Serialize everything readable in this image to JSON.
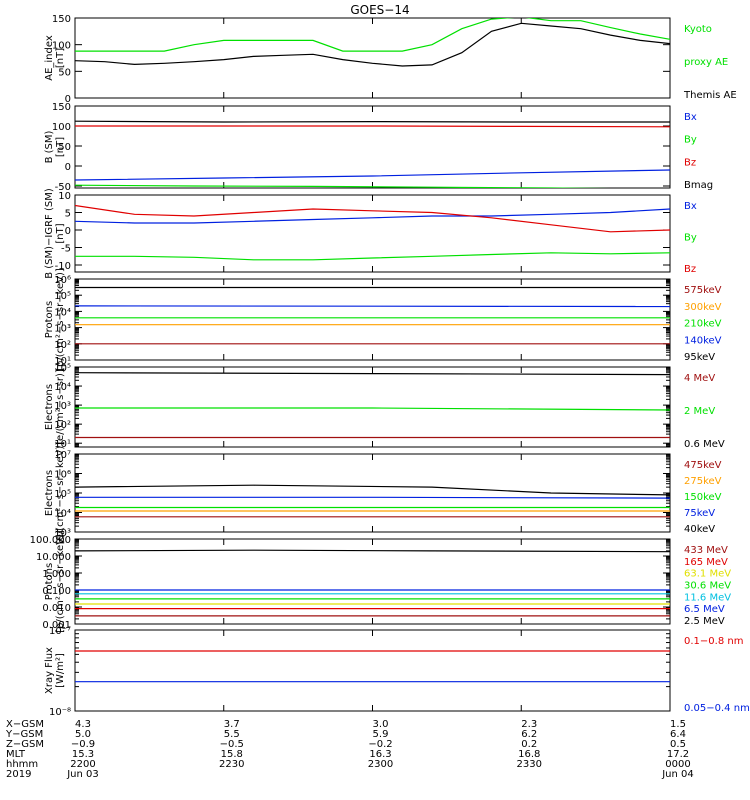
{
  "title": "GOES−14",
  "colors": {
    "black": "#000000",
    "green": "#00e000",
    "red": "#e00000",
    "darkred": "#a01010",
    "blue": "#0020e0",
    "orange": "#ffa000",
    "yellow": "#e0e000",
    "cyan": "#00c0e0",
    "purple": "#b000b0"
  },
  "chart_data": [
    {
      "type": "line",
      "panel": "ae_index",
      "ylabel": [
        "AE_index",
        "[nT]"
      ],
      "ylim": [
        0,
        150
      ],
      "yscale": "linear",
      "yticks": [
        "0",
        "50",
        "100",
        "150"
      ],
      "series": [
        {
          "name": "Kyoto proxy AE",
          "legend": [
            "Kyoto",
            "proxy AE"
          ],
          "color": "green",
          "x": [
            0,
            0.05,
            0.1,
            0.15,
            0.2,
            0.25,
            0.3,
            0.35,
            0.4,
            0.45,
            0.5,
            0.55,
            0.6,
            0.65,
            0.7,
            0.75,
            0.8,
            0.85,
            0.9,
            0.95,
            1.0
          ],
          "values": [
            88,
            88,
            88,
            88,
            100,
            108,
            108,
            108,
            108,
            88,
            88,
            88,
            100,
            130,
            148,
            152,
            145,
            145,
            132,
            120,
            110
          ]
        },
        {
          "name": "Themis AE",
          "legend": [
            "Themis AE"
          ],
          "color": "black",
          "x": [
            0,
            0.05,
            0.1,
            0.15,
            0.2,
            0.25,
            0.3,
            0.35,
            0.4,
            0.45,
            0.5,
            0.55,
            0.6,
            0.65,
            0.7,
            0.75,
            0.8,
            0.85,
            0.9,
            0.95,
            1.0
          ],
          "values": [
            70,
            68,
            63,
            65,
            68,
            72,
            78,
            80,
            82,
            72,
            65,
            60,
            62,
            85,
            125,
            140,
            135,
            130,
            118,
            108,
            102
          ]
        }
      ]
    },
    {
      "type": "line",
      "panel": "b_sm",
      "ylabel": [
        "B (SM)",
        "[nT]"
      ],
      "ylim": [
        -55,
        150
      ],
      "yscale": "linear",
      "yticks": [
        "-50",
        "0",
        "50",
        "100",
        "150"
      ],
      "series": [
        {
          "name": "Bx",
          "legend": [
            "Bx"
          ],
          "color": "blue",
          "x": [
            0,
            0.25,
            0.5,
            0.75,
            1.0
          ],
          "values": [
            -35,
            -30,
            -25,
            -17,
            -10
          ]
        },
        {
          "name": "By",
          "legend": [
            "By"
          ],
          "color": "green",
          "x": [
            0,
            0.2,
            0.4,
            0.6,
            0.8,
            1.0
          ],
          "values": [
            -48,
            -50,
            -51,
            -53,
            -55,
            -58
          ]
        },
        {
          "name": "Bz",
          "legend": [
            "Bz"
          ],
          "color": "red",
          "x": [
            0,
            0.25,
            0.5,
            0.75,
            1.0
          ],
          "values": [
            100,
            100,
            100,
            99,
            98
          ]
        },
        {
          "name": "Bmag",
          "legend": [
            "Bmag"
          ],
          "color": "black",
          "x": [
            0,
            0.25,
            0.5,
            0.75,
            1.0
          ],
          "values": [
            112,
            110,
            111,
            110,
            110
          ]
        }
      ]
    },
    {
      "type": "line",
      "panel": "b_sm_igrf",
      "ylabel": [
        "B (SM)−IGRF (SM)",
        "[nT]"
      ],
      "ylim": [
        -12,
        10
      ],
      "yscale": "linear",
      "yticks": [
        "-10",
        "-5",
        "0",
        "5",
        "10"
      ],
      "series": [
        {
          "name": "Bx",
          "legend": [
            "Bx"
          ],
          "color": "blue",
          "x": [
            0,
            0.1,
            0.2,
            0.3,
            0.4,
            0.5,
            0.6,
            0.7,
            0.8,
            0.9,
            1.0
          ],
          "values": [
            2.5,
            2,
            2,
            2.5,
            3,
            3.5,
            4,
            4,
            4.5,
            5,
            6
          ]
        },
        {
          "name": "By",
          "legend": [
            "By"
          ],
          "color": "green",
          "x": [
            0,
            0.1,
            0.2,
            0.3,
            0.4,
            0.5,
            0.6,
            0.7,
            0.8,
            0.9,
            1.0
          ],
          "values": [
            -7.5,
            -7.5,
            -7.8,
            -8.5,
            -8.5,
            -8,
            -7.5,
            -7,
            -6.5,
            -6.8,
            -6.5
          ]
        },
        {
          "name": "Bz",
          "legend": [
            "Bz"
          ],
          "color": "red",
          "x": [
            0,
            0.1,
            0.2,
            0.3,
            0.4,
            0.5,
            0.6,
            0.7,
            0.8,
            0.9,
            1.0
          ],
          "values": [
            7,
            4.5,
            4,
            5,
            6,
            5.5,
            5,
            3.5,
            1.5,
            -0.5,
            0
          ]
        }
      ]
    },
    {
      "type": "line",
      "panel": "protons_low",
      "ylabel": [
        "Protons",
        "[p/(cm²−s−sr−keV)]"
      ],
      "ylim_exp": [
        1,
        6
      ],
      "yscale": "log",
      "yticks": [
        "10¹",
        "10²",
        "10³",
        "10⁴",
        "10⁵",
        "10⁶"
      ],
      "series": [
        {
          "name": "575keV",
          "legend": [
            "575keV"
          ],
          "color": "darkred",
          "x": [
            0,
            1.0
          ],
          "values": [
            100,
            100
          ]
        },
        {
          "name": "300keV",
          "legend": [
            "300keV"
          ],
          "color": "orange",
          "x": [
            0,
            1.0
          ],
          "values": [
            1500,
            1500
          ]
        },
        {
          "name": "210keV",
          "legend": [
            "210keV"
          ],
          "color": "green",
          "x": [
            0,
            1.0
          ],
          "values": [
            4000,
            4000
          ]
        },
        {
          "name": "140keV",
          "legend": [
            "140keV"
          ],
          "color": "blue",
          "x": [
            0,
            1.0
          ],
          "values": [
            22000,
            20000
          ]
        },
        {
          "name": "95keV",
          "legend": [
            "95keV"
          ],
          "color": "black",
          "x": [
            0,
            1.0
          ],
          "values": [
            300000,
            300000
          ]
        }
      ]
    },
    {
      "type": "line",
      "panel": "electrons_high",
      "ylabel": [
        "Electrons",
        "[e/(cm²−s−sr)]"
      ],
      "ylim_exp": [
        0.8,
        5
      ],
      "yscale": "log",
      "yticks": [
        "10¹",
        "10²",
        "10³",
        "10⁴",
        "10⁵"
      ],
      "series": [
        {
          "name": "4 MeV",
          "legend": [
            "4 MeV"
          ],
          "color": "darkred",
          "x": [
            0,
            1.0
          ],
          "values": [
            20,
            20
          ]
        },
        {
          "name": "2 MeV",
          "legend": [
            "2 MeV"
          ],
          "color": "green",
          "x": [
            0,
            0.5,
            1.0
          ],
          "values": [
            700,
            700,
            550
          ]
        },
        {
          "name": "0.6 MeV",
          "legend": [
            "0.6 MeV"
          ],
          "color": "black",
          "x": [
            0,
            0.5,
            1.0
          ],
          "values": [
            50000,
            45000,
            40000
          ]
        }
      ]
    },
    {
      "type": "line",
      "panel": "electrons_low",
      "ylabel": [
        "Electrons",
        "[e/(cm²−s−sr−keV)]"
      ],
      "ylim_exp": [
        3,
        7
      ],
      "yscale": "log",
      "yticks": [
        "10³",
        "10⁴",
        "10⁵",
        "10⁶",
        "10⁷"
      ],
      "series": [
        {
          "name": "475keV",
          "legend": [
            "475keV"
          ],
          "color": "darkred",
          "x": [
            0,
            1.0
          ],
          "values": [
            6000,
            6000
          ]
        },
        {
          "name": "275keV",
          "legend": [
            "275keV"
          ],
          "color": "orange",
          "x": [
            0,
            1.0
          ],
          "values": [
            12000,
            12000
          ]
        },
        {
          "name": "150keV",
          "legend": [
            "150keV"
          ],
          "color": "green",
          "x": [
            0,
            1.0
          ],
          "values": [
            18000,
            18000
          ]
        },
        {
          "name": "75keV",
          "legend": [
            "75keV"
          ],
          "color": "blue",
          "x": [
            0,
            0.5,
            1.0
          ],
          "values": [
            60000,
            60000,
            55000
          ]
        },
        {
          "name": "40keV",
          "legend": [
            "40keV"
          ],
          "color": "black",
          "x": [
            0,
            0.3,
            0.6,
            0.8,
            1.0
          ],
          "values": [
            200000,
            250000,
            200000,
            100000,
            80000
          ]
        }
      ]
    },
    {
      "type": "line",
      "panel": "protons_high",
      "ylabel": [
        "Protons",
        "[p/(cm²−s−sr−keV)]"
      ],
      "ylim_exp": [
        -3,
        2
      ],
      "yscale": "log",
      "yticks": [
        "0.001",
        "0.010",
        "0.100",
        "1.000",
        "10.000",
        "100.000"
      ],
      "series": [
        {
          "name": "433 MeV",
          "legend": [
            "433 MeV"
          ],
          "color": "darkred",
          "x": [
            0,
            1.0
          ],
          "values": [
            0.003,
            0.003
          ]
        },
        {
          "name": "165 MeV",
          "legend": [
            "165 MeV"
          ],
          "color": "red",
          "x": [
            0,
            1.0
          ],
          "values": [
            0.008,
            0.008
          ]
        },
        {
          "name": "63.1 MeV",
          "legend": [
            "63.1 MeV"
          ],
          "color": "yellow",
          "x": [
            0,
            1.0
          ],
          "values": [
            0.015,
            0.015
          ]
        },
        {
          "name": "30.6 MeV",
          "legend": [
            "30.6 MeV"
          ],
          "color": "green",
          "x": [
            0,
            1.0
          ],
          "values": [
            0.03,
            0.03
          ]
        },
        {
          "name": "11.6 MeV",
          "legend": [
            "11.6 MeV"
          ],
          "color": "cyan",
          "x": [
            0,
            1.0
          ],
          "values": [
            0.06,
            0.06
          ]
        },
        {
          "name": "6.5 MeV",
          "legend": [
            "6.5 MeV"
          ],
          "color": "blue",
          "x": [
            0,
            1.0
          ],
          "values": [
            0.1,
            0.1
          ]
        },
        {
          "name": "2.5 MeV",
          "legend": [
            "2.5 MeV"
          ],
          "color": "black",
          "x": [
            0,
            0.3,
            0.6,
            1.0
          ],
          "values": [
            20,
            22,
            20,
            18
          ]
        }
      ]
    },
    {
      "type": "line",
      "panel": "xray",
      "ylabel": [
        "Xray Flux",
        "[W/m²]"
      ],
      "ylim_exp": [
        -8,
        -7
      ],
      "yscale": "log",
      "yticks": [
        "10⁻⁸",
        "10⁻⁷"
      ],
      "series": [
        {
          "name": "0.1−0.8 nm",
          "legend": [
            "0.1−0.8 nm"
          ],
          "color": "red",
          "x": [
            0,
            1.0
          ],
          "values": [
            5.5e-08,
            5.5e-08
          ]
        },
        {
          "name": "0.05−0.4 nm",
          "legend": [
            "0.05−0.4 nm"
          ],
          "color": "blue",
          "x": [
            0,
            1.0
          ],
          "values": [
            2.3e-08,
            2.3e-08
          ]
        }
      ]
    }
  ],
  "xaxis": {
    "row_labels": [
      "X−GSM",
      "Y−GSM",
      "Z−GSM",
      "MLT",
      "hhmm",
      "2019"
    ],
    "ticks": [
      {
        "x": 0.0,
        "values": [
          "4.3",
          "5.0",
          "−0.9",
          "15.3",
          "2200",
          "Jun 03"
        ]
      },
      {
        "x": 0.25,
        "values": [
          "3.7",
          "5.5",
          "−0.5",
          "15.8",
          "2230",
          ""
        ]
      },
      {
        "x": 0.5,
        "values": [
          "3.0",
          "5.9",
          "−0.2",
          "16.3",
          "2300",
          ""
        ]
      },
      {
        "x": 0.75,
        "values": [
          "2.3",
          "6.2",
          "0.2",
          "16.8",
          "2330",
          ""
        ]
      },
      {
        "x": 1.0,
        "values": [
          "1.5",
          "6.4",
          "0.5",
          "17.2",
          "0000",
          "Jun 04"
        ]
      }
    ]
  }
}
